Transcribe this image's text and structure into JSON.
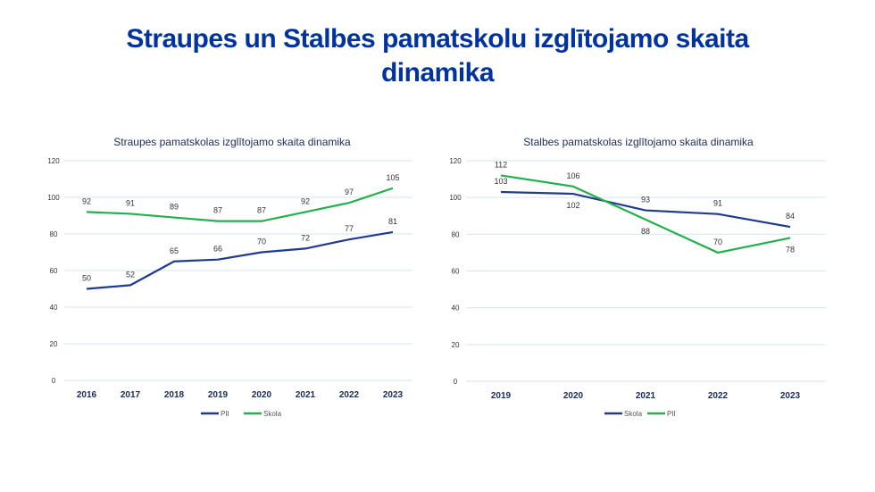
{
  "page": {
    "title_line1": "Straupes un Stalbes pamatskolu  izglītojamo skaita",
    "title_line2": "dinamika"
  },
  "colors": {
    "blue": "#1f3b8f",
    "green": "#22b04b",
    "title": "#0033a0"
  },
  "chart_data": [
    {
      "type": "line",
      "title": "Straupes pamatskolas izglītojamo skaita dinamika",
      "categories": [
        "2016",
        "2017",
        "2018",
        "2019",
        "2020",
        "2021",
        "2022",
        "2023"
      ],
      "ylim": [
        0,
        120
      ],
      "yticks": [
        0,
        20,
        40,
        60,
        80,
        100,
        120
      ],
      "legend": "bottom",
      "series": [
        {
          "name": "PII",
          "color": "#1f3b8f",
          "values": [
            50,
            52,
            65,
            66,
            70,
            72,
            77,
            81
          ],
          "label_pos": [
            "above",
            "above",
            "above",
            "above",
            "above",
            "above",
            "above",
            "above"
          ]
        },
        {
          "name": "Skola",
          "color": "#22b04b",
          "values": [
            92,
            91,
            89,
            87,
            87,
            92,
            97,
            105
          ],
          "label_pos": [
            "above",
            "above",
            "above",
            "above",
            "above",
            "above",
            "above",
            "above"
          ]
        }
      ]
    },
    {
      "type": "line",
      "title": "Stalbes pamatskolas izglītojamo skaita dinamika",
      "categories": [
        "2019",
        "2020",
        "2021",
        "2022",
        "2023"
      ],
      "ylim": [
        0,
        120
      ],
      "yticks": [
        0,
        20,
        40,
        60,
        80,
        100,
        120
      ],
      "legend": "bottom",
      "series": [
        {
          "name": "Skola",
          "color": "#1f3b8f",
          "values": [
            103,
            102,
            93,
            91,
            84
          ],
          "label_pos": [
            "above",
            "below",
            "above",
            "above",
            "above"
          ]
        },
        {
          "name": "PII",
          "color": "#22b04b",
          "values": [
            112,
            106,
            88,
            70,
            78
          ],
          "label_pos": [
            "above",
            "above",
            "below",
            "above",
            "below"
          ]
        }
      ]
    }
  ]
}
